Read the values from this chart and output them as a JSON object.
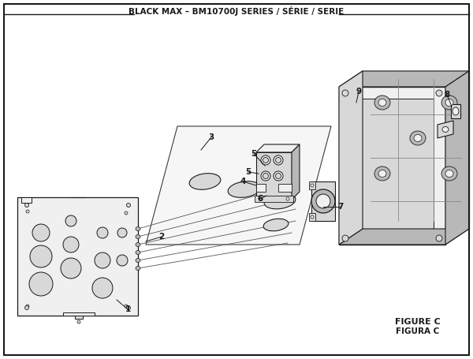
{
  "title": "BLACK MAX – BM10700J SERIES / SÉRIE / SERIE",
  "figure_label": "FIGURE C",
  "figure_label2": "FIGURA C",
  "bg_color": "#ffffff",
  "border_color": "#1a1a1a",
  "line_color": "#1a1a1a",
  "gray_light": "#f0f0f0",
  "gray_mid": "#d8d8d8",
  "gray_dark": "#b8b8b8"
}
